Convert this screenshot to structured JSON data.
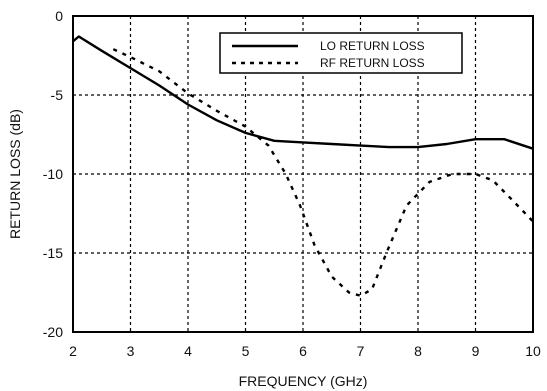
{
  "chart_data": {
    "type": "line",
    "xlabel": "FREQUENCY (GHz)",
    "ylabel": "RETURN LOSS (dB)",
    "xlim": [
      2,
      10
    ],
    "ylim": [
      -20,
      0
    ],
    "x_ticks": [
      2,
      3,
      4,
      5,
      6,
      7,
      8,
      9,
      10
    ],
    "y_ticks": [
      0,
      -5,
      -10,
      -15,
      -20
    ],
    "grid": true,
    "grid_style": "dotted",
    "legend_position": "top-right",
    "series": [
      {
        "name": "LO RETURN LOSS",
        "style": "solid",
        "color": "#000000",
        "points": [
          [
            2.0,
            -1.6
          ],
          [
            2.1,
            -1.3
          ],
          [
            2.5,
            -2.2
          ],
          [
            3.0,
            -3.3
          ],
          [
            3.5,
            -4.4
          ],
          [
            4.0,
            -5.6
          ],
          [
            4.5,
            -6.6
          ],
          [
            5.0,
            -7.4
          ],
          [
            5.5,
            -7.9
          ],
          [
            6.0,
            -8.0
          ],
          [
            6.5,
            -8.1
          ],
          [
            7.0,
            -8.2
          ],
          [
            7.5,
            -8.3
          ],
          [
            8.0,
            -8.3
          ],
          [
            8.5,
            -8.1
          ],
          [
            9.0,
            -7.8
          ],
          [
            9.5,
            -7.8
          ],
          [
            10.0,
            -8.4
          ]
        ]
      },
      {
        "name": "RF RETURN LOSS",
        "style": "dashed",
        "color": "#000000",
        "points": [
          [
            2.7,
            -2.1
          ],
          [
            3.0,
            -2.6
          ],
          [
            3.5,
            -3.5
          ],
          [
            4.0,
            -4.9
          ],
          [
            4.5,
            -6.0
          ],
          [
            5.0,
            -7.0
          ],
          [
            5.4,
            -8.2
          ],
          [
            5.7,
            -10.0
          ],
          [
            5.95,
            -12.0
          ],
          [
            6.2,
            -14.5
          ],
          [
            6.5,
            -16.5
          ],
          [
            6.8,
            -17.5
          ],
          [
            7.0,
            -17.7
          ],
          [
            7.2,
            -17.3
          ],
          [
            7.45,
            -15.0
          ],
          [
            7.8,
            -12.0
          ],
          [
            8.2,
            -10.5
          ],
          [
            8.6,
            -10.0
          ],
          [
            9.0,
            -10.0
          ],
          [
            9.3,
            -10.4
          ],
          [
            9.6,
            -11.5
          ],
          [
            10.0,
            -13.0
          ]
        ]
      }
    ]
  }
}
